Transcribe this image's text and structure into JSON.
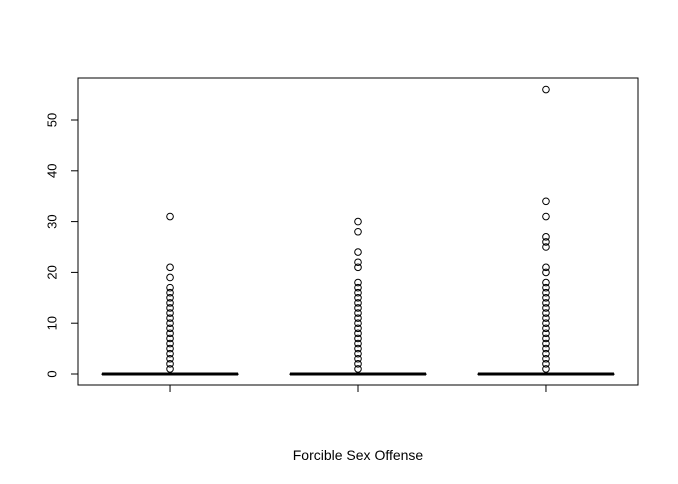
{
  "chart_data": {
    "type": "boxplot",
    "title": "",
    "xlabel": "Forcible Sex Offense",
    "ylabel": "",
    "ylim": [
      -2,
      58
    ],
    "yticks": [
      0,
      10,
      20,
      30,
      40,
      50
    ],
    "grid": false,
    "series": [
      {
        "min": 0,
        "q1": 0,
        "median": 0,
        "q3": 0,
        "max": 0,
        "outliers": [
          1,
          2,
          3,
          4,
          5,
          6,
          7,
          8,
          9,
          10,
          11,
          12,
          13,
          14,
          15,
          16,
          17,
          19,
          21,
          31
        ]
      },
      {
        "min": 0,
        "q1": 0,
        "median": 0,
        "q3": 0,
        "max": 0,
        "outliers": [
          1,
          2,
          3,
          4,
          5,
          6,
          7,
          8,
          9,
          10,
          11,
          12,
          13,
          14,
          15,
          16,
          17,
          18,
          21,
          22,
          24,
          28,
          30
        ]
      },
      {
        "min": 0,
        "q1": 0,
        "median": 0,
        "q3": 0,
        "max": 0,
        "outliers": [
          1,
          2,
          3,
          4,
          5,
          6,
          7,
          8,
          9,
          10,
          11,
          12,
          13,
          14,
          15,
          16,
          17,
          18,
          20,
          21,
          25,
          26,
          27,
          31,
          34,
          56
        ]
      }
    ]
  }
}
